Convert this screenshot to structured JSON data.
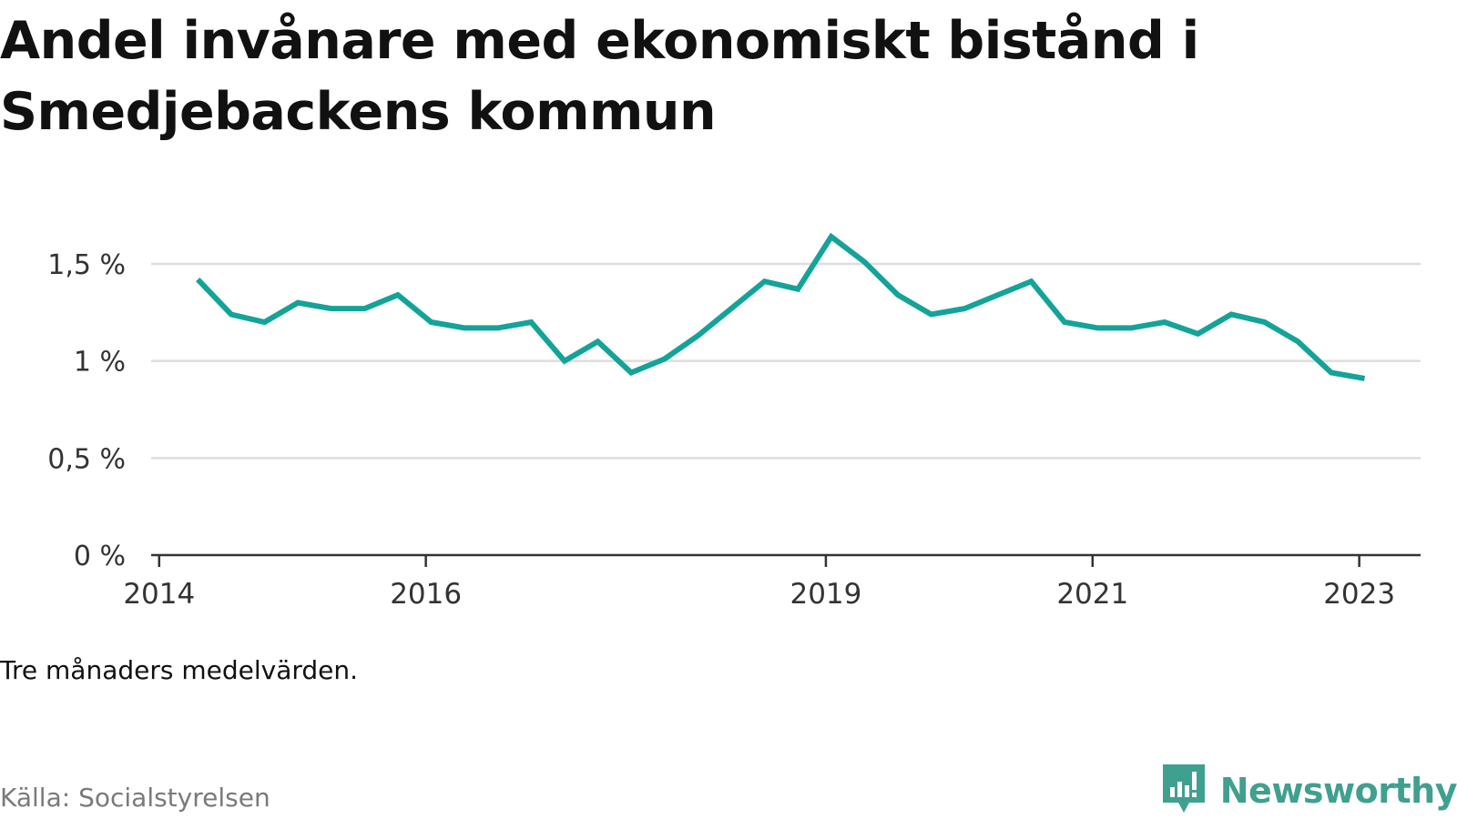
{
  "title": "Andel invånare med ekonomiskt bistånd i Smedjebackens kommun",
  "note": "Tre månaders medelvärden.",
  "source": "Källa: Socialstyrelsen",
  "brand": {
    "name": "Newsworthy",
    "icon": "newsworthy-logo-icon"
  },
  "colors": {
    "line": "#14a398",
    "grid": "#dddddd",
    "axis": "#333333",
    "brand": "#40a08f"
  },
  "chart_data": {
    "type": "line",
    "title": "Andel invånare med ekonomiskt bistånd i Smedjebackens kommun",
    "xlabel": "",
    "ylabel": "",
    "ylim": [
      0,
      1.5
    ],
    "yticks": [
      {
        "value": 0,
        "label": "0 %"
      },
      {
        "value": 0.5,
        "label": "0,5 %"
      },
      {
        "value": 1,
        "label": "1 %"
      },
      {
        "value": 1.5,
        "label": "1,5 %"
      }
    ],
    "xticks": [
      {
        "value": 2014.0,
        "label": "2014"
      },
      {
        "value": 2016.0,
        "label": "2016"
      },
      {
        "value": 2019.0,
        "label": "2019"
      },
      {
        "value": 2021.0,
        "label": "2021"
      },
      {
        "value": 2023.0,
        "label": "2023"
      }
    ],
    "grid": true,
    "legend": "none",
    "x": [
      2014.29,
      2014.54,
      2014.79,
      2015.04,
      2015.29,
      2015.54,
      2015.79,
      2016.04,
      2016.29,
      2016.54,
      2016.79,
      2017.04,
      2017.29,
      2017.54,
      2017.79,
      2018.04,
      2018.29,
      2018.54,
      2018.79,
      2019.04,
      2019.29,
      2019.54,
      2019.79,
      2020.04,
      2020.29,
      2020.54,
      2020.79,
      2021.04,
      2021.29,
      2021.54,
      2021.79,
      2022.04,
      2022.29,
      2022.54,
      2022.79,
      2023.04
    ],
    "series": [
      {
        "values": [
          1.42,
          1.24,
          1.2,
          1.3,
          1.27,
          1.27,
          1.34,
          1.2,
          1.17,
          1.17,
          1.2,
          1.0,
          1.1,
          0.94,
          1.01,
          1.13,
          1.27,
          1.41,
          1.37,
          1.64,
          1.51,
          1.34,
          1.24,
          1.27,
          1.34,
          1.41,
          1.2,
          1.17,
          1.17,
          1.2,
          1.14,
          1.24,
          1.2,
          1.1,
          0.94,
          0.91
        ]
      }
    ]
  }
}
